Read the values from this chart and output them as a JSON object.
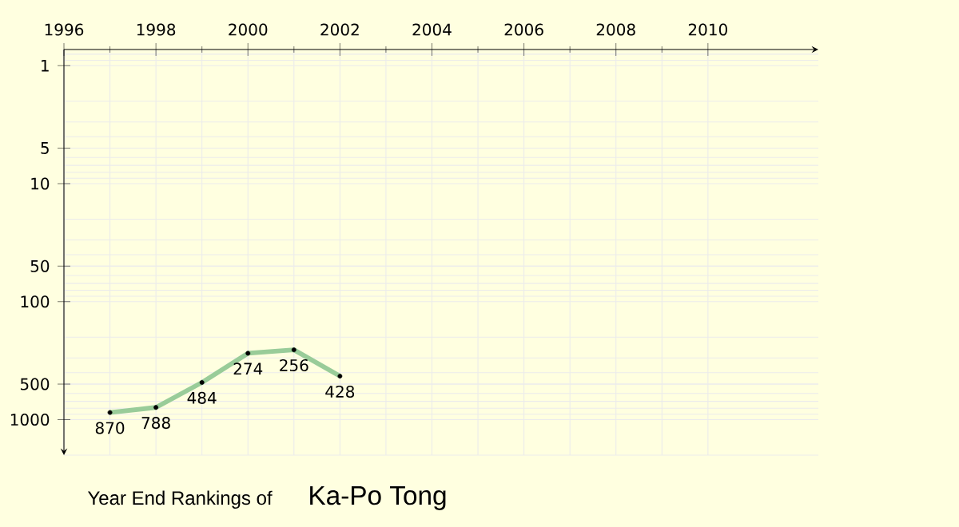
{
  "chart_data": {
    "type": "line",
    "title": "Year End Rankings of",
    "subtitle": "Ka-Po Tong",
    "x": [
      1997,
      1998,
      1999,
      2000,
      2001,
      2002
    ],
    "values": [
      870,
      788,
      484,
      274,
      256,
      428
    ],
    "color": "#99cc99",
    "xlim": [
      1996,
      2012.4
    ],
    "xticks": [
      1996,
      1998,
      2000,
      2002,
      2004,
      2006,
      2008,
      2010
    ],
    "ylim": [
      2000,
      0.73
    ],
    "yticks": [
      1,
      5,
      10,
      50,
      100,
      500,
      1000
    ],
    "log": "y",
    "grid": true,
    "marker": "circle",
    "line_style": "solid",
    "data_labels": true
  }
}
